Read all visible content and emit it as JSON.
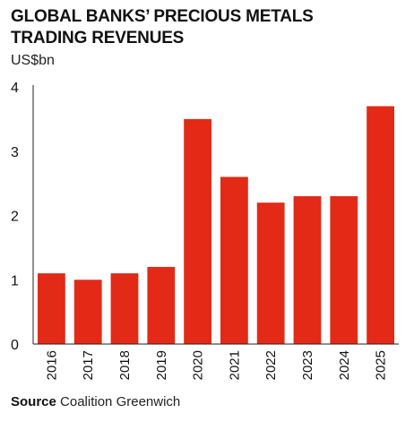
{
  "header": {
    "title_line1": "GLOBAL BANKS’ PRECIOUS METALS",
    "title_line2": "TRADING REVENUES",
    "unit": "US$bn"
  },
  "footer": {
    "source_label": "Source",
    "source_text": "Coalition Greenwich"
  },
  "colors": {
    "bar": "#e22a17",
    "axis": "#222222",
    "text": "#111111"
  },
  "chart_data": {
    "type": "bar",
    "title": "GLOBAL BANKS’ PRECIOUS METALS TRADING REVENUES",
    "ylabel": "US$bn",
    "xlabel": "",
    "categories": [
      "2016",
      "2017",
      "2018",
      "2019",
      "2020",
      "2021",
      "2022",
      "2023",
      "2024",
      "2025"
    ],
    "values": [
      1.1,
      1.0,
      1.1,
      1.2,
      3.5,
      2.6,
      2.2,
      2.3,
      2.3,
      3.7
    ],
    "ylim": [
      0,
      4
    ],
    "yticks": [
      "0",
      "1",
      "2",
      "3",
      "4"
    ],
    "grid": false,
    "legend": "none",
    "x_tick_rotation": "vertical"
  }
}
